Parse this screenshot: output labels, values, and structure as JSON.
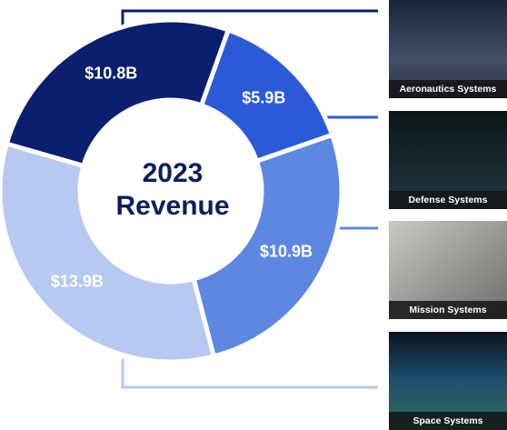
{
  "chart_data": {
    "type": "donut",
    "center_text": [
      "2023",
      "Revenue"
    ],
    "categories": [
      "Aeronautics Systems",
      "Defense Systems",
      "Mission Systems",
      "Space Systems"
    ],
    "values": [
      10.8,
      5.9,
      10.9,
      13.9
    ],
    "value_labels": [
      "$10.8B",
      "$5.9B",
      "$10.9B",
      "$13.9B"
    ],
    "colors": [
      "#0b1f6e",
      "#2a5ad8",
      "#5d88e2",
      "#b7c8f1"
    ]
  }
}
